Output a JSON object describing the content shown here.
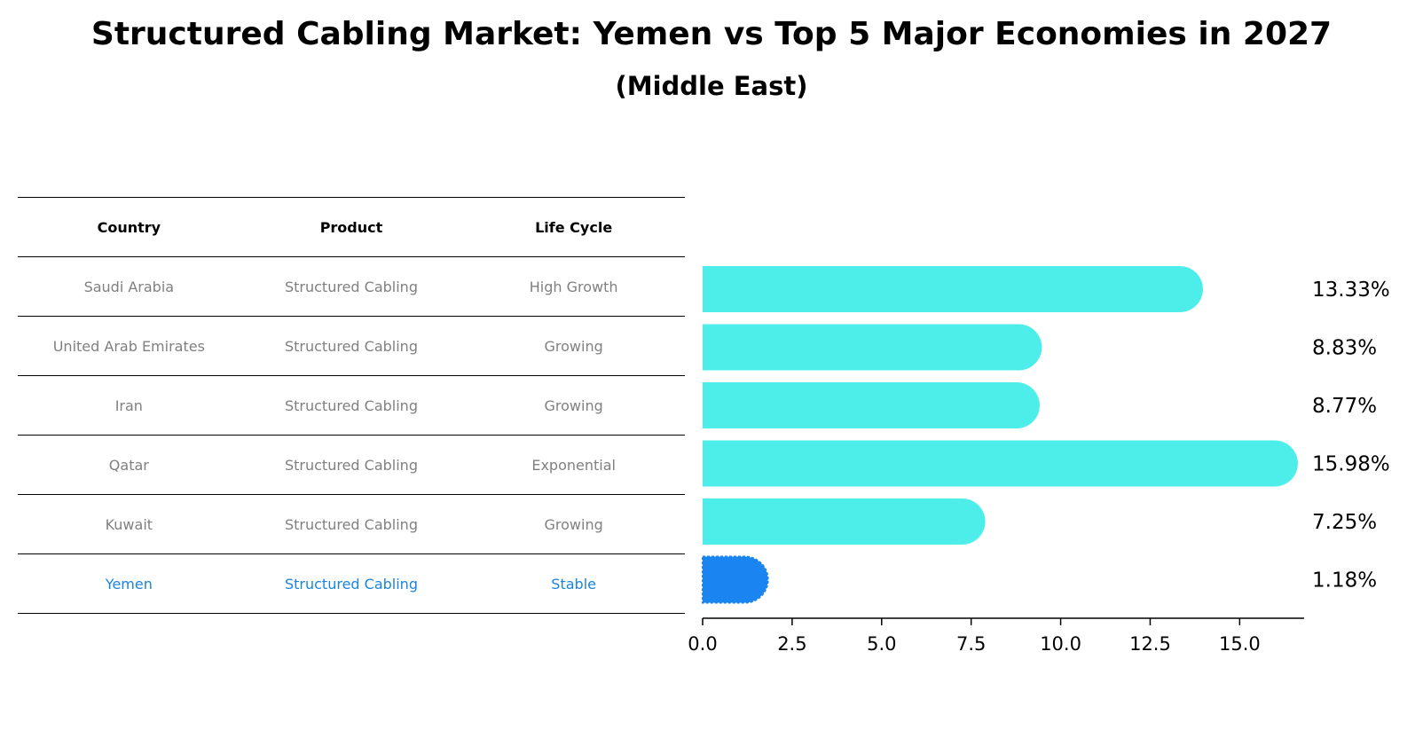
{
  "title": "Structured Cabling Market: Yemen vs Top 5 Major Economies in 2027",
  "subtitle": "(Middle East)",
  "table": {
    "headers": [
      "Country",
      "Product",
      "Life Cycle"
    ],
    "rows": [
      {
        "country": "Saudi Arabia",
        "product": "Structured Cabling",
        "life_cycle": "High Growth"
      },
      {
        "country": "United Arab Emirates",
        "product": "Structured Cabling",
        "life_cycle": "Growing"
      },
      {
        "country": "Iran",
        "product": "Structured Cabling",
        "life_cycle": "Growing"
      },
      {
        "country": "Qatar",
        "product": "Structured Cabling",
        "life_cycle": "Exponential"
      },
      {
        "country": "Kuwait",
        "product": "Structured Cabling",
        "life_cycle": "Growing"
      },
      {
        "country": "Yemen",
        "product": "Structured Cabling",
        "life_cycle": "Stable"
      }
    ]
  },
  "colors": {
    "bar": "#4DEEEA",
    "highlight_bar": "#1A84F0",
    "highlight_text": "#1A84E0",
    "muted_text": "#808080"
  },
  "chart_data": {
    "type": "bar",
    "orientation": "horizontal",
    "title": "Structured Cabling Market: Yemen vs Top 5 Major Economies in 2027",
    "subtitle": "(Middle East)",
    "categories": [
      "Saudi Arabia",
      "United Arab Emirates",
      "Iran",
      "Qatar",
      "Kuwait",
      "Yemen"
    ],
    "values": [
      13.33,
      8.83,
      8.77,
      15.98,
      7.25,
      1.18
    ],
    "value_labels": [
      "13.33%",
      "8.83%",
      "8.77%",
      "15.98%",
      "7.25%",
      "1.18%"
    ],
    "highlight": "Yemen",
    "xlim": [
      0,
      16.8
    ],
    "xticks": [
      0.0,
      2.5,
      5.0,
      7.5,
      10.0,
      12.5,
      15.0
    ],
    "xtick_labels": [
      "0.0",
      "2.5",
      "5.0",
      "7.5",
      "10.0",
      "12.5",
      "15.0"
    ],
    "xlabel": "",
    "ylabel": "",
    "grid": false
  }
}
